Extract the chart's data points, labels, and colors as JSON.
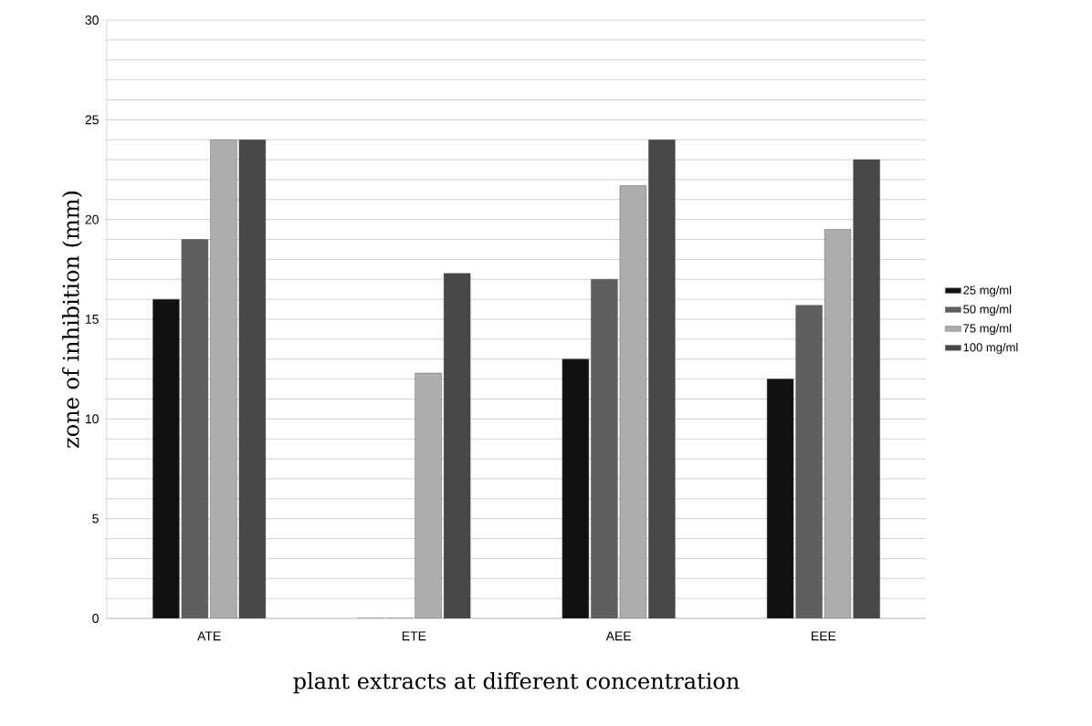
{
  "chart_data": {
    "type": "bar",
    "xlabel": "plant extracts at different concentration",
    "ylabel": "zone of inhibition (mm)",
    "categories": [
      "ATE",
      "ETE",
      "AEE",
      "EEE"
    ],
    "series": [
      {
        "name": "25 mg/ml",
        "color": "#111111",
        "values": [
          16,
          0,
          13,
          12
        ]
      },
      {
        "name": "50 mg/ml",
        "color": "#5f5f5f",
        "values": [
          19,
          0,
          17,
          15.7
        ]
      },
      {
        "name": "75 mg/ml",
        "color": "#adadad",
        "values": [
          24,
          12.3,
          21.7,
          19.5
        ]
      },
      {
        "name": "100 mg/ml",
        "color": "#474747",
        "values": [
          24,
          17.3,
          24,
          23
        ]
      }
    ],
    "ylim": [
      0,
      30
    ],
    "yticks": [
      0,
      {
        "value": 1,
        "label": null
      },
      {
        "value": 2,
        "label": null
      },
      {
        "value": 3,
        "label": null
      },
      {
        "value": 4,
        "label": null
      },
      5,
      {
        "value": 6,
        "label": null
      },
      {
        "value": 7,
        "label": null
      },
      {
        "value": 8,
        "label": null
      },
      {
        "value": 9,
        "label": null
      },
      10,
      {
        "value": 11,
        "label": null
      },
      {
        "value": 12,
        "label": null
      },
      {
        "value": 13,
        "label": null
      },
      {
        "value": 14,
        "label": null
      },
      15,
      {
        "value": 16,
        "label": null
      },
      {
        "value": 17,
        "label": null
      },
      {
        "value": 18,
        "label": null
      },
      {
        "value": 19,
        "label": null
      },
      20,
      {
        "value": 21,
        "label": null
      },
      {
        "value": 22,
        "label": null
      },
      {
        "value": 23,
        "label": null
      },
      {
        "value": 24,
        "label": null
      },
      25,
      {
        "value": 26,
        "label": null
      },
      {
        "value": 27,
        "label": null
      },
      {
        "value": 28,
        "label": null
      },
      {
        "value": 29,
        "label": null
      },
      30
    ],
    "grid": "y",
    "legend": "right"
  }
}
